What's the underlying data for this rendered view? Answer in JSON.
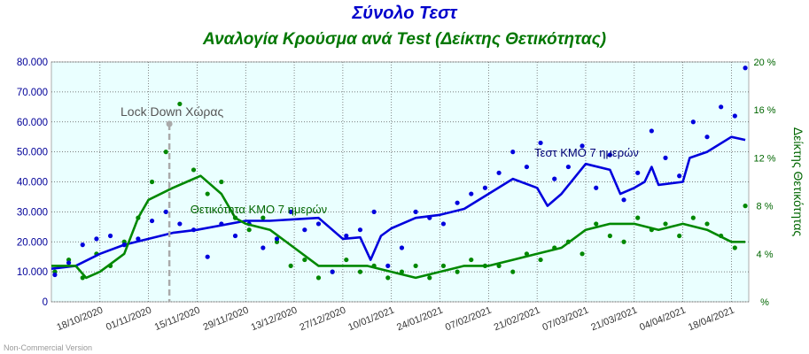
{
  "chart_data": {
    "type": "scatter+line",
    "title": "Σύνολο Τεστ",
    "subtitle": "Αναλογία Κρούσμα ανά Test (Δείκτης Θετικότητας)",
    "colors": {
      "title": "#0000cc",
      "subtitle": "#007700",
      "tests": "#0000dd",
      "positivity": "#008800",
      "plot_bg": "#eaffff",
      "lockdown": "#aaaaaa",
      "left_axis": "#000099",
      "right_axis": "#006600"
    },
    "x_labels": [
      "18/10/2020",
      "01/11/2020",
      "15/11/2020",
      "29/11/2020",
      "13/12/2020",
      "27/12/2020",
      "10/01/2021",
      "24/01/2021",
      "07/02/2021",
      "21/02/2021",
      "07/03/2021",
      "21/03/2021",
      "04/04/2021",
      "18/04/2021"
    ],
    "y_left": {
      "ticks": [
        "0",
        "10.000",
        "20.000",
        "30.000",
        "40.000",
        "50.000",
        "60.000",
        "70.000",
        "80.000"
      ],
      "ylim": [
        0,
        80000
      ]
    },
    "y_right": {
      "label": "Δείκτης Θετικότητας",
      "ticks": [
        "%",
        "4 %",
        "8 %",
        "12 %",
        "16 %",
        "20 %"
      ],
      "ylim": [
        0,
        20
      ]
    },
    "annotations": {
      "lockdown": {
        "label": "Lock Down Χώρας",
        "date": "07/11/2020"
      },
      "tests_ma_label": "Τεστ ΚΜΟ 7 ημερών",
      "positivity_ma_label": "Θετικότητα ΚΜΟ 7 ημερών"
    },
    "series": [
      {
        "name": "Τεστ ΚΜΟ 7 ημερών",
        "axis": "left",
        "style": "line",
        "x": [
          "04/10/2020",
          "11/10/2020",
          "18/10/2020",
          "25/10/2020",
          "01/11/2020",
          "08/11/2020",
          "15/11/2020",
          "22/11/2020",
          "29/11/2020",
          "06/12/2020",
          "13/12/2020",
          "20/12/2020",
          "27/12/2020",
          "01/01/2021",
          "04/01/2021",
          "07/01/2021",
          "10/01/2021",
          "17/01/2021",
          "24/01/2021",
          "31/01/2021",
          "07/02/2021",
          "14/02/2021",
          "21/02/2021",
          "24/02/2021",
          "28/02/2021",
          "07/03/2021",
          "14/03/2021",
          "17/03/2021",
          "21/03/2021",
          "24/03/2021",
          "26/03/2021",
          "28/03/2021",
          "04/04/2021",
          "06/04/2021",
          "11/04/2021",
          "18/04/2021",
          "22/04/2021"
        ],
        "y": [
          11000,
          12000,
          16000,
          19000,
          21000,
          23000,
          24000,
          25500,
          27000,
          27000,
          27500,
          28000,
          21000,
          21500,
          14000,
          22000,
          24500,
          28000,
          29000,
          31000,
          36000,
          41000,
          38000,
          32000,
          36000,
          46000,
          44000,
          36000,
          38000,
          40000,
          45000,
          39000,
          40000,
          48000,
          50000,
          55000,
          54000
        ]
      },
      {
        "name": "Θετικότητα ΚΜΟ 7 ημερών",
        "axis": "right",
        "style": "line",
        "x": [
          "04/10/2020",
          "11/10/2020",
          "14/10/2020",
          "18/10/2020",
          "25/10/2020",
          "29/10/2020",
          "01/11/2020",
          "08/11/2020",
          "12/11/2020",
          "16/11/2020",
          "22/11/2020",
          "26/11/2020",
          "29/11/2020",
          "06/12/2020",
          "13/12/2020",
          "20/12/2020",
          "27/12/2020",
          "03/01/2021",
          "10/01/2021",
          "17/01/2021",
          "24/01/2021",
          "31/01/2021",
          "07/02/2021",
          "14/02/2021",
          "21/02/2021",
          "28/02/2021",
          "07/03/2021",
          "14/03/2021",
          "21/03/2021",
          "28/03/2021",
          "04/04/2021",
          "11/04/2021",
          "18/04/2021",
          "22/04/2021"
        ],
        "y": [
          3.0,
          3.0,
          2.0,
          2.5,
          4.0,
          7.0,
          8.5,
          9.5,
          10.0,
          10.5,
          9.0,
          7.0,
          6.5,
          6.0,
          4.5,
          3.0,
          3.0,
          3.0,
          2.5,
          2.0,
          2.5,
          3.0,
          3.0,
          3.5,
          4.0,
          4.5,
          6.0,
          6.5,
          6.5,
          6.0,
          6.5,
          6.0,
          5.0,
          5.0
        ]
      },
      {
        "name": "",
        "axis": "left",
        "style": "points",
        "x": [
          "05/10/2020",
          "09/10/2020",
          "13/10/2020",
          "17/10/2020",
          "21/10/2020",
          "25/10/2020",
          "29/10/2020",
          "02/11/2020",
          "06/11/2020",
          "10/11/2020",
          "14/11/2020",
          "18/11/2020",
          "22/11/2020",
          "26/11/2020",
          "30/11/2020",
          "04/12/2020",
          "08/12/2020",
          "12/12/2020",
          "16/12/2020",
          "20/12/2020",
          "24/12/2020",
          "28/12/2020",
          "01/01/2021",
          "05/01/2021",
          "09/01/2021",
          "13/01/2021",
          "17/01/2021",
          "21/01/2021",
          "25/01/2021",
          "29/01/2021",
          "02/02/2021",
          "06/02/2021",
          "10/02/2021",
          "14/02/2021",
          "18/02/2021",
          "22/02/2021",
          "26/02/2021",
          "02/03/2021",
          "06/03/2021",
          "10/03/2021",
          "14/03/2021",
          "18/03/2021",
          "22/03/2021",
          "26/03/2021",
          "30/03/2021",
          "03/04/2021",
          "07/04/2021",
          "11/04/2021",
          "15/04/2021",
          "19/04/2021",
          "22/04/2021"
        ],
        "y": [
          9000,
          13000,
          19000,
          21000,
          22000,
          19000,
          21000,
          27000,
          30000,
          26000,
          24000,
          15000,
          26000,
          22000,
          26000,
          18000,
          21000,
          30000,
          24000,
          26000,
          10000,
          22000,
          24000,
          30000,
          12000,
          18000,
          30000,
          28000,
          26000,
          33000,
          36000,
          38000,
          43000,
          50000,
          45000,
          53000,
          41000,
          45000,
          52000,
          38000,
          49000,
          34000,
          43000,
          57000,
          48000,
          42000,
          60000,
          55000,
          65000,
          62000,
          78000
        ]
      },
      {
        "name": "",
        "axis": "right",
        "style": "points",
        "x": [
          "05/10/2020",
          "09/10/2020",
          "13/10/2020",
          "17/10/2020",
          "21/10/2020",
          "25/10/2020",
          "29/10/2020",
          "02/11/2020",
          "06/11/2020",
          "10/11/2020",
          "14/11/2020",
          "18/11/2020",
          "22/11/2020",
          "26/11/2020",
          "30/11/2020",
          "04/12/2020",
          "08/12/2020",
          "12/12/2020",
          "16/12/2020",
          "20/12/2020",
          "24/12/2020",
          "28/12/2020",
          "01/01/2021",
          "05/01/2021",
          "09/01/2021",
          "13/01/2021",
          "17/01/2021",
          "21/01/2021",
          "25/01/2021",
          "29/01/2021",
          "02/02/2021",
          "06/02/2021",
          "10/02/2021",
          "14/02/2021",
          "18/02/2021",
          "22/02/2021",
          "26/02/2021",
          "02/03/2021",
          "06/03/2021",
          "10/03/2021",
          "14/03/2021",
          "18/03/2021",
          "22/03/2021",
          "26/03/2021",
          "30/03/2021",
          "03/04/2021",
          "07/04/2021",
          "11/04/2021",
          "15/04/2021",
          "19/04/2021",
          "22/04/2021"
        ],
        "y": [
          2.5,
          3.5,
          2.0,
          4.0,
          3.0,
          5.0,
          7.0,
          10.0,
          12.5,
          16.5,
          11.0,
          9.0,
          10.0,
          7.0,
          6.0,
          7.0,
          5.0,
          3.0,
          3.5,
          2.0,
          2.5,
          3.5,
          2.5,
          3.0,
          2.0,
          2.5,
          3.0,
          2.0,
          3.0,
          2.5,
          3.5,
          3.0,
          3.0,
          2.5,
          4.0,
          3.5,
          4.5,
          5.0,
          4.0,
          6.5,
          5.5,
          5.0,
          7.0,
          6.0,
          6.5,
          5.5,
          7.0,
          6.5,
          5.5,
          4.5,
          8.0
        ]
      }
    ]
  }
}
